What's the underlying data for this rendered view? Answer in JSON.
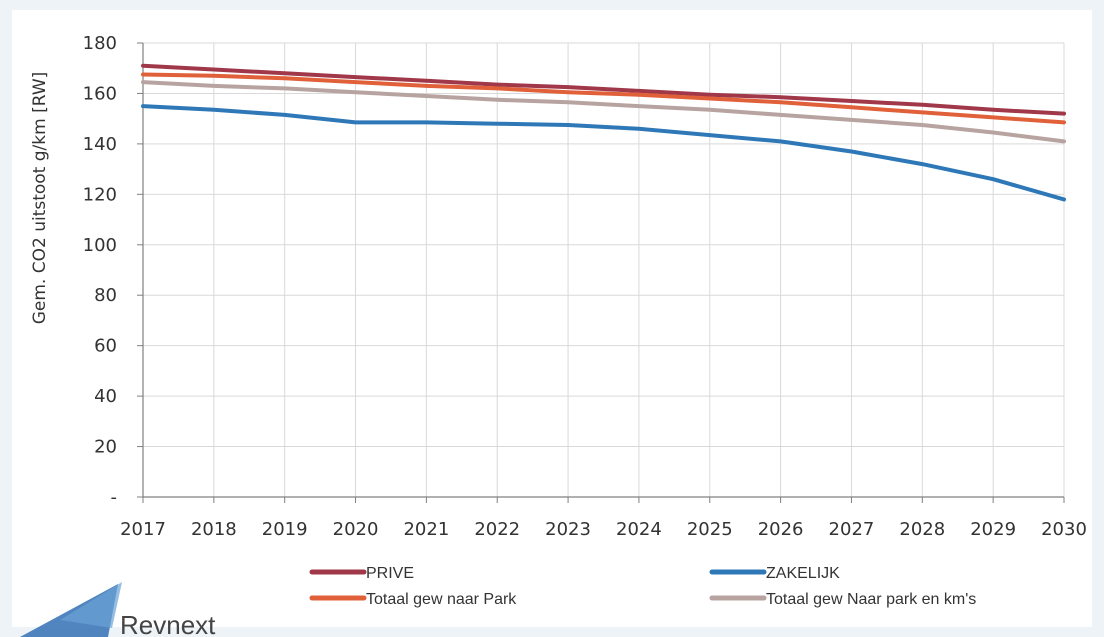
{
  "chart_data": {
    "type": "line",
    "title": "",
    "xlabel": "",
    "ylabel": "Gem. CO2 uitstoot g/km [RW]",
    "x": [
      "2017",
      "2018",
      "2019",
      "2020",
      "2021",
      "2022",
      "2023",
      "2024",
      "2025",
      "2026",
      "2027",
      "2028",
      "2029",
      "2030"
    ],
    "ylim": [
      0,
      180
    ],
    "yticks": [
      0,
      20,
      40,
      60,
      80,
      100,
      120,
      140,
      160,
      180
    ],
    "ytick_labels": [
      "-",
      "20",
      "40",
      "60",
      "80",
      "100",
      "120",
      "140",
      "160",
      "180"
    ],
    "grid": true,
    "legend_position": "bottom",
    "series": [
      {
        "name": "PRIVE",
        "color": "#a0384a",
        "values": [
          171,
          169.5,
          168,
          166.5,
          165,
          163.5,
          162.5,
          161,
          159.5,
          158.5,
          157,
          155.5,
          153.5,
          152
        ]
      },
      {
        "name": "Totaal gew naar Park",
        "color": "#e0603a",
        "values": [
          167.5,
          167,
          166,
          164.5,
          163,
          162,
          160.5,
          159.5,
          158,
          156.5,
          154.5,
          152.5,
          150.5,
          148.5
        ]
      },
      {
        "name": "Totaal gew Naar park en km's",
        "color": "#b7a4a0",
        "values": [
          164.5,
          163,
          162,
          160.5,
          159,
          157.5,
          156.5,
          155,
          153.5,
          151.5,
          149.5,
          147.5,
          144.5,
          141
        ]
      },
      {
        "name": "ZAKELIJK",
        "color": "#2f78b7",
        "values": [
          155,
          153.5,
          151.5,
          148.5,
          148.5,
          148,
          147.5,
          146,
          143.5,
          141,
          137,
          132,
          126,
          118
        ]
      }
    ]
  },
  "brand": {
    "name": "Revnext"
  }
}
